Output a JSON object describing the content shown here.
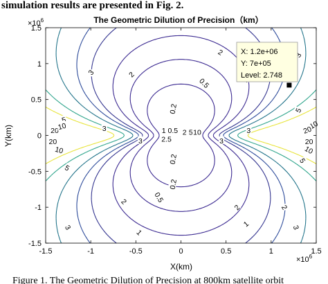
{
  "page": {
    "top_text": "simulation results are presented in Fig. 2.",
    "caption": "Figure 1. The Geometric Dilution of Precision at 800km satellite orbit"
  },
  "chart_data": {
    "type": "contour",
    "title": "The Geometric Dilution of Precision（km）",
    "xlabel": "X(km)",
    "ylabel": "Y(km)",
    "x_exponent": "×10^6",
    "y_exponent": "×10^6",
    "xlim": [
      -1.5,
      1.5
    ],
    "ylim": [
      -1.5,
      1.5
    ],
    "xticks": [
      "-1.5",
      "-1",
      "-0.5",
      "0",
      "0.5",
      "1",
      "1.5"
    ],
    "yticks": [
      "-1.5",
      "-1",
      "-0.5",
      "0",
      "0.5",
      "1",
      "1.5"
    ],
    "contour_levels": [
      0.2,
      0.5,
      1,
      2,
      3,
      5,
      10,
      20
    ],
    "level_colors": {
      "0.2": "#3a2890",
      "0.5": "#3a2890",
      "1": "#3a2890",
      "2": "#33348f",
      "3": "#2c4a9a",
      "5": "#22748a",
      "10": "#2fa58c",
      "20": "#e8e43a"
    },
    "contour_labels": [
      {
        "text": "0.5",
        "x": 0.26,
        "y": 0.73,
        "rot": 45
      },
      {
        "text": "1",
        "x": 0.74,
        "y": 0.78,
        "rot": 45
      },
      {
        "text": "2",
        "x": 0.44,
        "y": 1.16,
        "rot": 30
      },
      {
        "text": "3",
        "x": 1.3,
        "y": 1.12,
        "rot": -60
      },
      {
        "text": "5",
        "x": 1.3,
        "y": 0.35,
        "rot": -65
      },
      {
        "text": "10",
        "x": 1.47,
        "y": 0.15,
        "rot": -30
      },
      {
        "text": "20",
        "x": 1.4,
        "y": 0.08,
        "rot": -20
      },
      {
        "text": "3",
        "x": 0.75,
        "y": 0.07,
        "rot": 0
      },
      {
        "text": "0.2",
        "x": -0.09,
        "y": 0.37,
        "rot": -80
      },
      {
        "text": "0.5",
        "x": -0.09,
        "y": 0.07,
        "rot": 0
      },
      {
        "text": "1",
        "x": -0.19,
        "y": 0.07,
        "rot": 0
      },
      {
        "text": "2",
        "x": 0.04,
        "y": 0.05,
        "rot": 0
      },
      {
        "text": "5",
        "x": 0.11,
        "y": 0.05,
        "rot": 0
      },
      {
        "text": "10",
        "x": 0.18,
        "y": 0.05,
        "rot": 0
      },
      {
        "text": "3",
        "x": -1.0,
        "y": 0.88,
        "rot": -50
      },
      {
        "text": "2",
        "x": -0.55,
        "y": 0.85,
        "rot": -45
      },
      {
        "text": "5",
        "x": -1.3,
        "y": 0.22,
        "rot": -15
      },
      {
        "text": "20",
        "x": -1.4,
        "y": 0.07,
        "rot": 0
      },
      {
        "text": "10",
        "x": -1.32,
        "y": 0.13,
        "rot": -15
      },
      {
        "text": "3",
        "x": -0.85,
        "y": 0.1,
        "rot": 0
      },
      {
        "text": "20",
        "x": -1.42,
        "y": -0.08,
        "rot": 0
      },
      {
        "text": "10",
        "x": -1.35,
        "y": -0.2,
        "rot": 15
      },
      {
        "text": "5",
        "x": -1.26,
        "y": -0.45,
        "rot": 30
      },
      {
        "text": "3",
        "x": -0.45,
        "y": -0.07,
        "rot": 0
      },
      {
        "text": "2",
        "x": -0.63,
        "y": -0.92,
        "rot": 45
      },
      {
        "text": "1",
        "x": -0.46,
        "y": -1.35,
        "rot": 45
      },
      {
        "text": "3",
        "x": -1.25,
        "y": -1.28,
        "rot": 60
      },
      {
        "text": "2.5",
        "x": -0.16,
        "y": -0.05,
        "rot": 0
      },
      {
        "text": "0.2",
        "x": -0.09,
        "y": -0.33,
        "rot": -80
      },
      {
        "text": "0.2",
        "x": -0.09,
        "y": -0.68,
        "rot": -80
      },
      {
        "text": "0.5",
        "x": -0.24,
        "y": -0.86,
        "rot": 60
      },
      {
        "text": "1",
        "x": 0.72,
        "y": -1.23,
        "rot": -40
      },
      {
        "text": "2",
        "x": 0.62,
        "y": -1.0,
        "rot": -45
      },
      {
        "text": "3",
        "x": 0.45,
        "y": -0.07,
        "rot": 0
      },
      {
        "text": "5",
        "x": 1.35,
        "y": -0.35,
        "rot": 60
      },
      {
        "text": "10",
        "x": 1.42,
        "y": -0.2,
        "rot": 30
      },
      {
        "text": "20",
        "x": 1.42,
        "y": -0.08,
        "rot": 0
      },
      {
        "text": "2",
        "x": 1.15,
        "y": -1.0,
        "rot": 60
      },
      {
        "text": "3",
        "x": 1.28,
        "y": -1.28,
        "rot": 70
      }
    ],
    "datatip": {
      "x_text": "X: 1.2e+06",
      "y_text": "Y: 7e+05",
      "level_text": "Level: 2.748",
      "x": 1200000.0,
      "y": 700000.0,
      "level": 2.748
    }
  }
}
